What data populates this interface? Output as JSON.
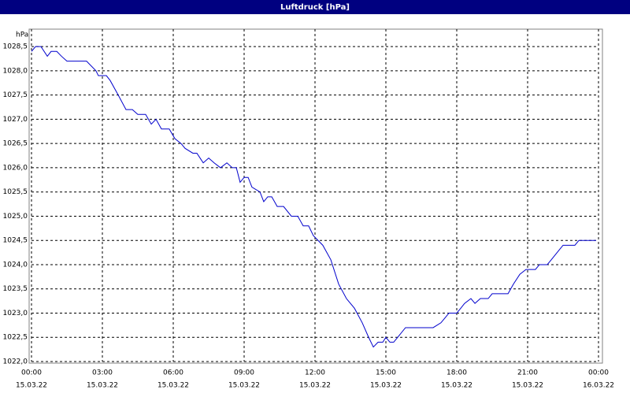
{
  "chart_data": {
    "type": "line",
    "title": "Luftdruck [hPa]",
    "y_unit": "hPa",
    "x": [
      0,
      0.17,
      0.4,
      0.67,
      0.83,
      1.07,
      1.27,
      1.5,
      2.33,
      2.73,
      2.83,
      3.17,
      3.33,
      3.67,
      4,
      4.27,
      4.5,
      4.83,
      5.07,
      5.27,
      5.5,
      5.83,
      6.07,
      6.33,
      6.5,
      6.83,
      7,
      7.27,
      7.5,
      7.73,
      8,
      8.27,
      8.5,
      8.67,
      8.83,
      9,
      9.17,
      9.33,
      9.67,
      9.83,
      10,
      10.17,
      10.4,
      10.67,
      11,
      11.27,
      11.5,
      11.73,
      11.93,
      12.33,
      12.67,
      13,
      13.33,
      13.67,
      14,
      14.27,
      14.47,
      14.67,
      14.87,
      15,
      15.17,
      15.33,
      15.5,
      15.83,
      17,
      17.33,
      17.5,
      17.67,
      18,
      18.17,
      18.33,
      18.6,
      18.77,
      19,
      19.33,
      19.5,
      20.17,
      20.4,
      20.67,
      20.93,
      21.33,
      21.5,
      21.83,
      22,
      22.33,
      22.5,
      23,
      23.17,
      23.9
    ],
    "series": [
      {
        "name": "Luftdruck",
        "color": "#0000cc",
        "values": [
          1028.4,
          1028.5,
          1028.5,
          1028.3,
          1028.4,
          1028.4,
          1028.3,
          1028.2,
          1028.2,
          1028.0,
          1027.9,
          1027.9,
          1027.8,
          1027.5,
          1027.2,
          1027.2,
          1027.1,
          1027.1,
          1026.9,
          1027.0,
          1026.8,
          1026.8,
          1026.6,
          1026.5,
          1026.4,
          1026.3,
          1026.3,
          1026.1,
          1026.2,
          1026.1,
          1026.0,
          1026.1,
          1026.0,
          1026.0,
          1025.7,
          1025.8,
          1025.8,
          1025.6,
          1025.5,
          1025.3,
          1025.4,
          1025.4,
          1025.2,
          1025.2,
          1025.0,
          1025.0,
          1024.8,
          1024.8,
          1024.6,
          1024.4,
          1024.1,
          1023.6,
          1023.3,
          1023.1,
          1022.8,
          1022.5,
          1022.3,
          1022.4,
          1022.4,
          1022.5,
          1022.4,
          1022.4,
          1022.5,
          1022.7,
          1022.7,
          1022.8,
          1022.9,
          1023.0,
          1023.0,
          1023.1,
          1023.2,
          1023.3,
          1023.2,
          1023.3,
          1023.3,
          1023.4,
          1023.4,
          1023.6,
          1023.8,
          1023.9,
          1023.9,
          1024.0,
          1024.0,
          1024.1,
          1024.3,
          1024.4,
          1024.4,
          1024.5,
          1024.5
        ]
      }
    ],
    "xlim": [
      0,
      24
    ],
    "xticks": [
      {
        "value": 0,
        "label": "00:00",
        "date": "15.03.22"
      },
      {
        "value": 3,
        "label": "03:00",
        "date": "15.03.22"
      },
      {
        "value": 6,
        "label": "06:00",
        "date": "15.03.22"
      },
      {
        "value": 9,
        "label": "09:00",
        "date": "15.03.22"
      },
      {
        "value": 12,
        "label": "12:00",
        "date": "15.03.22"
      },
      {
        "value": 15,
        "label": "15:00",
        "date": "15.03.22"
      },
      {
        "value": 18,
        "label": "18:00",
        "date": "15.03.22"
      },
      {
        "value": 21,
        "label": "21:00",
        "date": "15.03.22"
      },
      {
        "value": 24,
        "label": "00:00",
        "date": "16.03.22"
      }
    ],
    "ylim": [
      1022.0,
      1028.86
    ],
    "yticks": [
      {
        "value": 1022.0,
        "label": "1022,0"
      },
      {
        "value": 1022.5,
        "label": "1022,5"
      },
      {
        "value": 1023.0,
        "label": "1023,0"
      },
      {
        "value": 1023.5,
        "label": "1023,5"
      },
      {
        "value": 1024.0,
        "label": "1024,0"
      },
      {
        "value": 1024.5,
        "label": "1024,5"
      },
      {
        "value": 1025.0,
        "label": "1025,0"
      },
      {
        "value": 1025.5,
        "label": "1025,5"
      },
      {
        "value": 1026.0,
        "label": "1026,0"
      },
      {
        "value": 1026.5,
        "label": "1026,5"
      },
      {
        "value": 1027.0,
        "label": "1027,0"
      },
      {
        "value": 1027.5,
        "label": "1027,5"
      },
      {
        "value": 1028.0,
        "label": "1028,0"
      },
      {
        "value": 1028.5,
        "label": "1028,5"
      }
    ],
    "grid": true
  }
}
